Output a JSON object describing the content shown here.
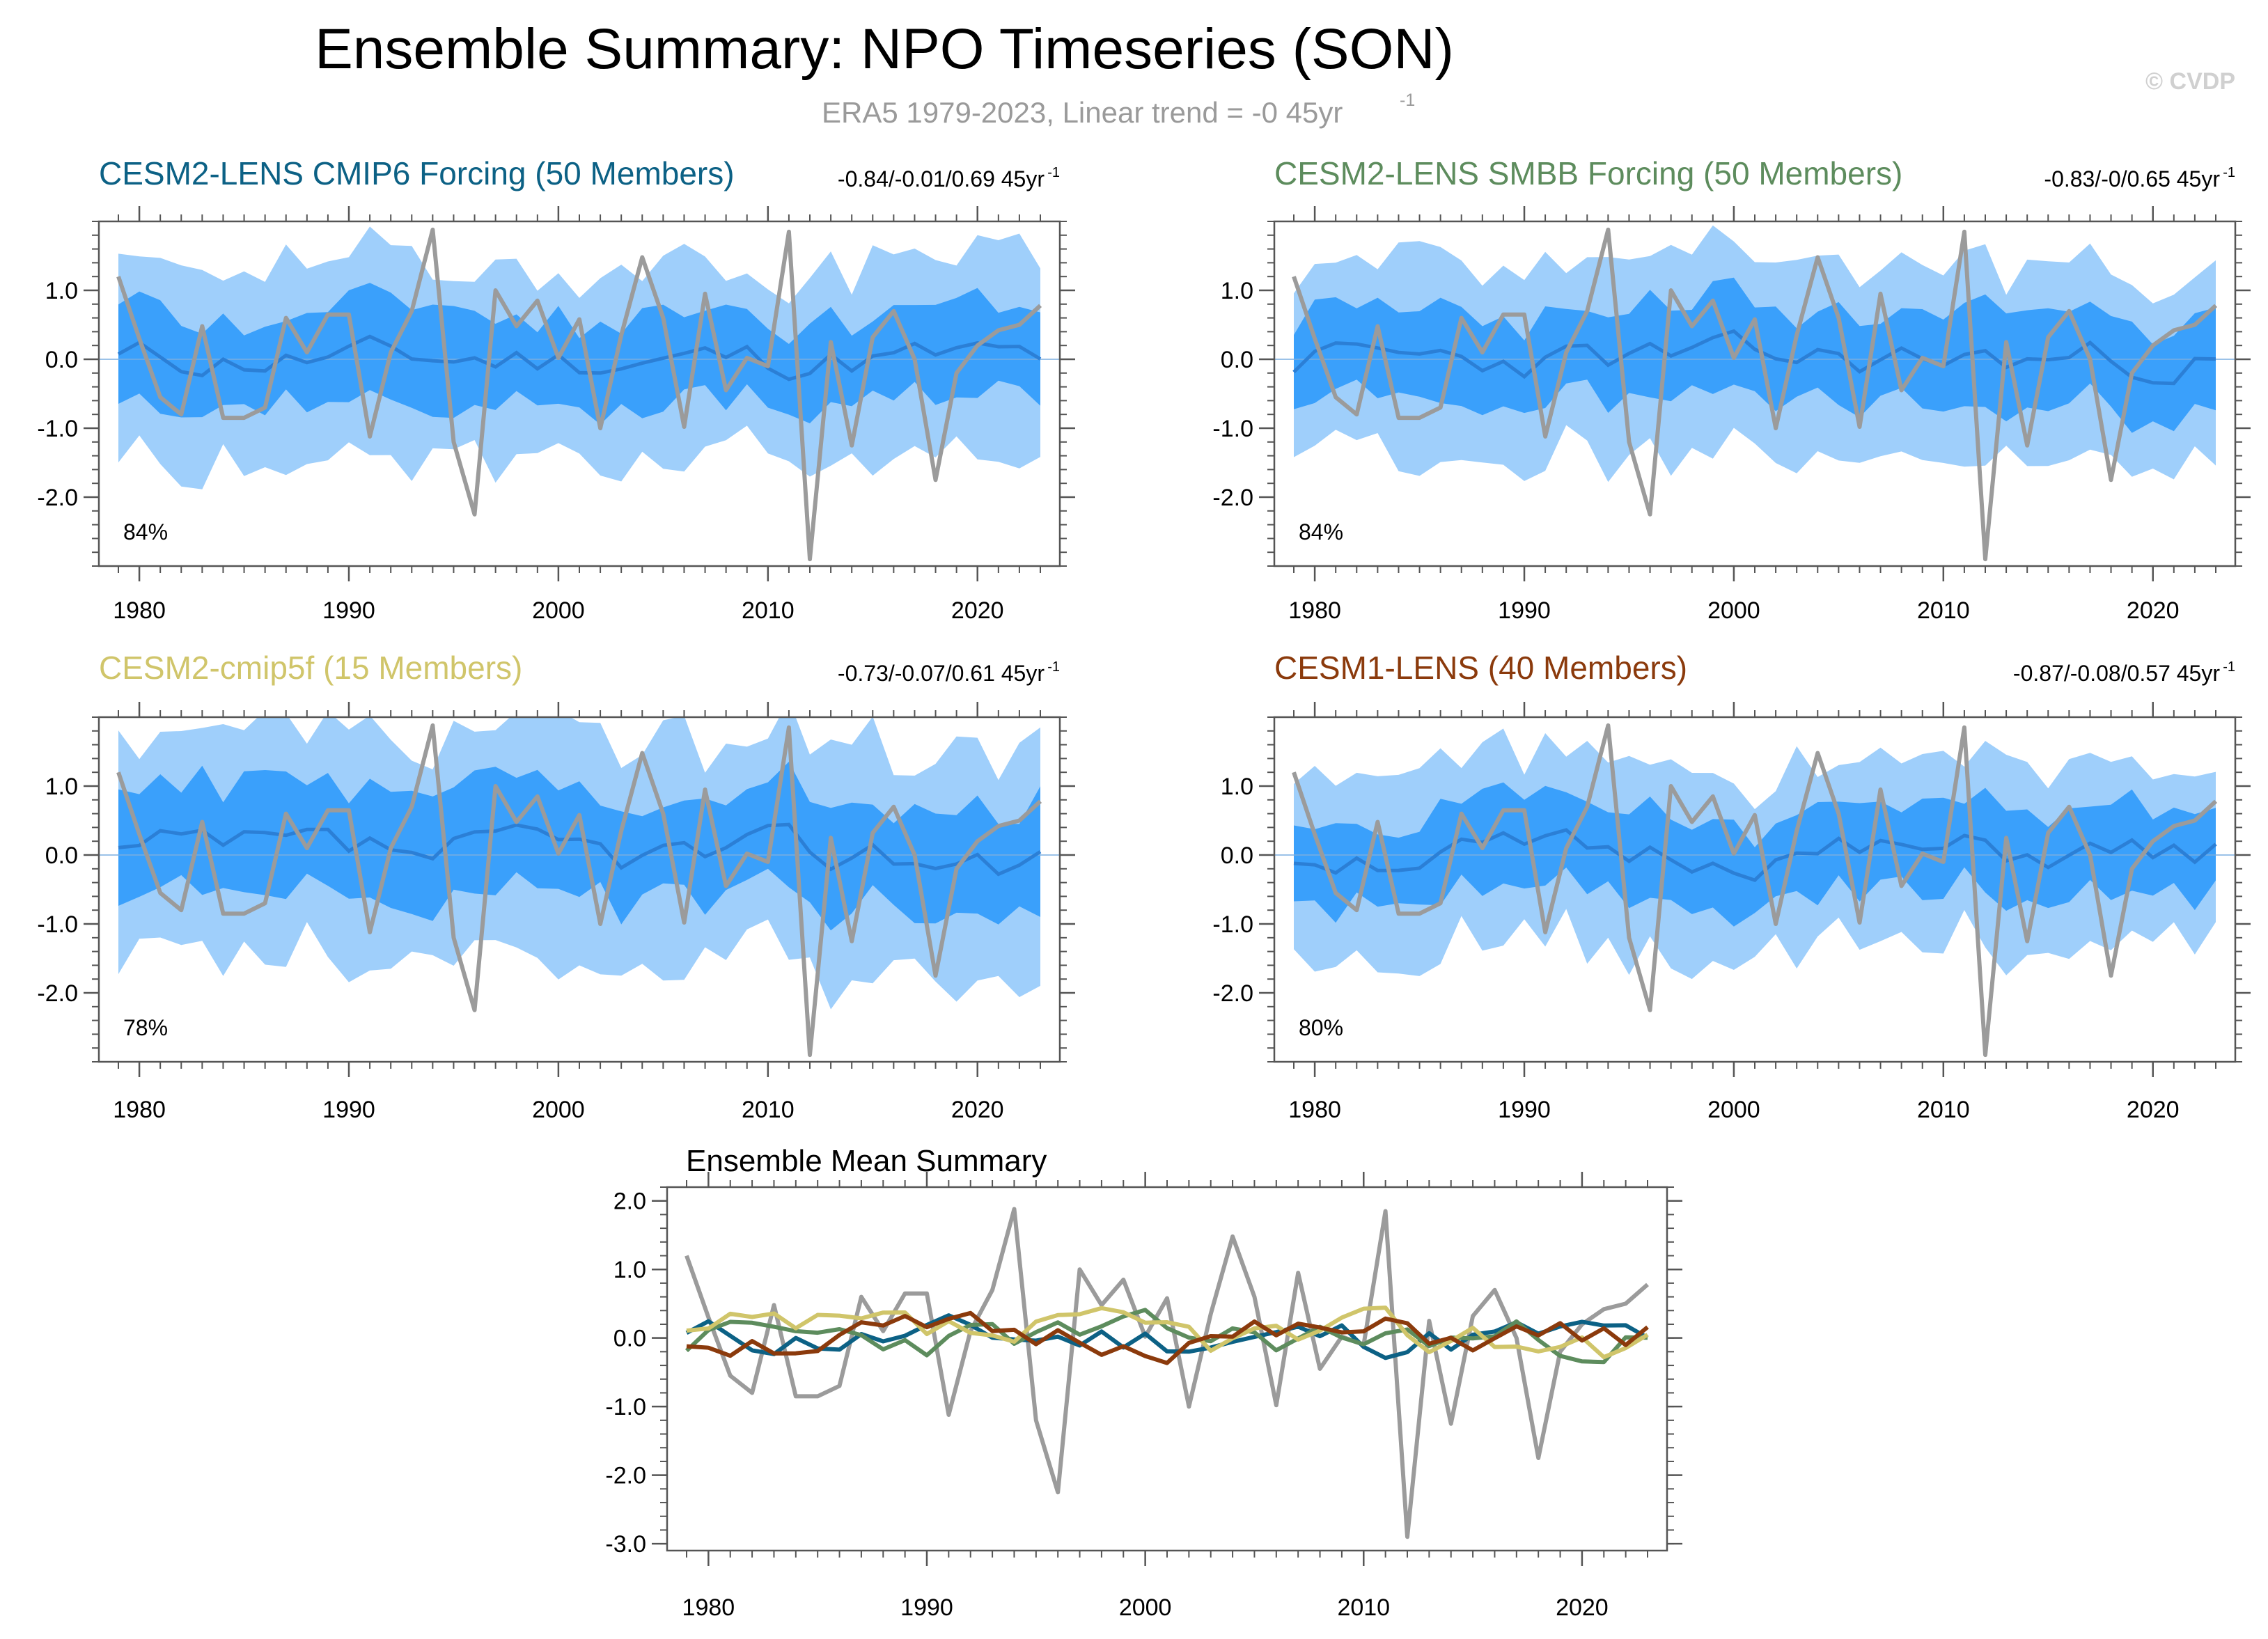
{
  "header": {
    "title": "Ensemble Summary: NPO Timeseries (SON)",
    "subtitle": "ERA5 1979-2023, Linear trend = -0 45yr",
    "subtitle_sup": "-1",
    "watermark": "© CVDP"
  },
  "colors": {
    "obs": "#9b9b9b",
    "band_outer": "#9fcffb",
    "band_inner": "#3aa0fb",
    "ens_mean": "#2b7fd6",
    "cmip6": "#0c6185",
    "smbb": "#5d8c5d",
    "cmip5f": "#d0c56a",
    "cesm1": "#8b3a0c"
  },
  "chart_data": [
    {
      "type": "line",
      "title": "CESM2-LENS CMIP6 Forcing (50 Members)",
      "title_color": "#0c6185",
      "stats": "-0.84/-0.01/0.69 45yr",
      "stats_sup": "-1",
      "percent": "84%",
      "xlim": [
        1979,
        2023
      ],
      "ylim": [
        -3.0,
        2.0
      ],
      "x_ticks": [
        "1980",
        "1990",
        "2000",
        "2010",
        "2020"
      ],
      "y_ticks": [
        "1.0",
        "0.0",
        "-1.0",
        "-2.0"
      ],
      "mean_seed": 11,
      "amp": 1.0
    },
    {
      "type": "line",
      "title": "CESM2-LENS SMBB Forcing (50 Members)",
      "title_color": "#5d8c5d",
      "stats": "-0.83/-0/0.65 45yr",
      "stats_sup": "-1",
      "percent": "84%",
      "xlim": [
        1979,
        2023
      ],
      "ylim": [
        -3.0,
        2.0
      ],
      "x_ticks": [
        "1980",
        "1990",
        "2000",
        "2010",
        "2020"
      ],
      "y_ticks": [
        "1.0",
        "0.0",
        "-1.0",
        "-2.0"
      ],
      "mean_seed": 23,
      "amp": 1.0
    },
    {
      "type": "line",
      "title": "CESM2-cmip5f (15 Members)",
      "title_color": "#d0c56a",
      "stats": "-0.73/-0.07/0.61 45yr",
      "stats_sup": "-1",
      "percent": "78%",
      "xlim": [
        1979,
        2023
      ],
      "ylim": [
        -3.0,
        2.0
      ],
      "x_ticks": [
        "1980",
        "1990",
        "2000",
        "2010",
        "2020"
      ],
      "y_ticks": [
        "1.0",
        "0.0",
        "-1.0",
        "-2.0"
      ],
      "mean_seed": 37,
      "amp": 1.15
    },
    {
      "type": "line",
      "title": "CESM1-LENS (40 Members)",
      "title_color": "#8b3a0c",
      "stats": "-0.87/-0.08/0.57 45yr",
      "stats_sup": "-1",
      "percent": "80%",
      "xlim": [
        1979,
        2023
      ],
      "ylim": [
        -3.0,
        2.0
      ],
      "x_ticks": [
        "1980",
        "1990",
        "2000",
        "2010",
        "2020"
      ],
      "y_ticks": [
        "1.0",
        "0.0",
        "-1.0",
        "-2.0"
      ],
      "mean_seed": 51,
      "amp": 0.95
    },
    {
      "type": "line",
      "title": "Ensemble Mean Summary",
      "xlim": [
        1979,
        2023
      ],
      "ylim": [
        -3.1,
        2.2
      ],
      "x_ticks": [
        "1980",
        "1990",
        "2000",
        "2010",
        "2020"
      ],
      "y_ticks": [
        "2.0",
        "1.0",
        "0.0",
        "-1.0",
        "-2.0",
        "-3.0"
      ],
      "series": [
        "obs",
        "cmip6",
        "smbb",
        "cmip5f",
        "cesm1"
      ]
    }
  ],
  "obs_series": {
    "name": "ERA5",
    "years": [
      1979,
      1980,
      1981,
      1982,
      1983,
      1984,
      1985,
      1986,
      1987,
      1988,
      1989,
      1990,
      1991,
      1992,
      1993,
      1994,
      1995,
      1996,
      1997,
      1998,
      1999,
      2000,
      2001,
      2002,
      2003,
      2004,
      2005,
      2006,
      2007,
      2008,
      2009,
      2010,
      2011,
      2012,
      2013,
      2014,
      2015,
      2016,
      2017,
      2018,
      2019,
      2020,
      2021,
      2022,
      2023
    ],
    "values": [
      1.2,
      0.3,
      -0.55,
      -0.8,
      0.48,
      -0.85,
      -0.85,
      -0.7,
      0.6,
      0.1,
      0.65,
      0.65,
      -1.12,
      0.1,
      0.7,
      1.88,
      -1.2,
      -2.25,
      1.0,
      0.48,
      0.85,
      0.02,
      0.58,
      -1.0,
      0.35,
      1.48,
      0.6,
      -0.98,
      0.95,
      -0.45,
      0.02,
      -0.1,
      1.85,
      -2.9,
      0.25,
      -1.25,
      0.32,
      0.7,
      0.0,
      -1.75,
      -0.2,
      0.2,
      0.42,
      0.5,
      0.78
    ]
  }
}
